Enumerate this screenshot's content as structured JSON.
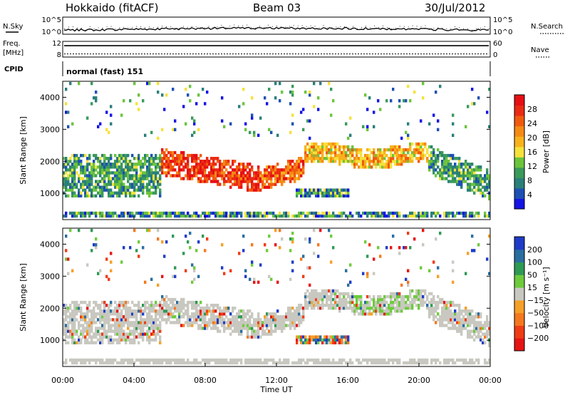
{
  "header": {
    "station": "Hokkaido (fitACF)",
    "beam": "Beam 03",
    "date": "30/Jul/2012"
  },
  "strip_labels": {
    "nsky": "N.Sky",
    "nsearch": "N.Search",
    "freq_line1": "Freq.",
    "freq_line2": "[MHz]",
    "nave": "Nave",
    "cpid": "CPID",
    "cpid_value": "normal (fast) 151"
  },
  "colors": {
    "power_scale": [
      "#1414e6",
      "#1e4fb4",
      "#2a7f7a",
      "#3a9a5a",
      "#6cc43c",
      "#f5e23a",
      "#f8b21c",
      "#f58a14",
      "#f05a0f",
      "#eb2a14",
      "#e60f14"
    ],
    "velocity_scale": [
      "#e61414",
      "#f03c14",
      "#f5781e",
      "#f5a028",
      "#c8c8c0",
      "#6ecb3c",
      "#2e9a54",
      "#2a6ea0",
      "#1e3cc8"
    ]
  },
  "chart_data": [
    {
      "type": "line",
      "name": "noise-strip",
      "left_ticks": [
        "10^5",
        "10^0"
      ],
      "right_ticks": [
        "10^5",
        "10^0"
      ],
      "series": [
        {
          "name": "N.Sky"
        },
        {
          "name": "N.Search"
        }
      ]
    },
    {
      "type": "line",
      "name": "freq-strip",
      "left_ticks": [
        "12",
        "8"
      ],
      "right_ticks": [
        "60",
        "0"
      ],
      "series": [
        {
          "name": "Freq.",
          "value": 10.9
        },
        {
          "name": "Nave",
          "value": 12
        }
      ]
    },
    {
      "type": "heatmap",
      "name": "power-panel",
      "xlabel": "",
      "ylabel": "Slant Range [km]",
      "yticks": [
        "4000",
        "3000",
        "2000",
        "1000"
      ],
      "ylim": [
        180,
        4500
      ],
      "xlim": [
        0,
        24
      ],
      "colorbar_label": "Power [dB]",
      "colorbar_ticks": [
        "28",
        "24",
        "20",
        "16",
        "12",
        "8",
        "4"
      ],
      "colorbar_range": [
        0,
        30
      ]
    },
    {
      "type": "heatmap",
      "name": "velocity-panel",
      "xlabel": "Time UT",
      "ylabel": "Slant Range [km]",
      "yticks": [
        "4000",
        "3000",
        "2000",
        "1000"
      ],
      "ylim": [
        180,
        4500
      ],
      "xlim": [
        0,
        24
      ],
      "xticks": [
        "00:00",
        "04:00",
        "08:00",
        "12:00",
        "16:00",
        "20:00",
        "00:00"
      ],
      "colorbar_label": "Velocity [m s⁻¹]",
      "colorbar_ticks": [
        "200",
        "100",
        "50",
        "15",
        "−15",
        "−50",
        "−100",
        "−200"
      ]
    }
  ]
}
